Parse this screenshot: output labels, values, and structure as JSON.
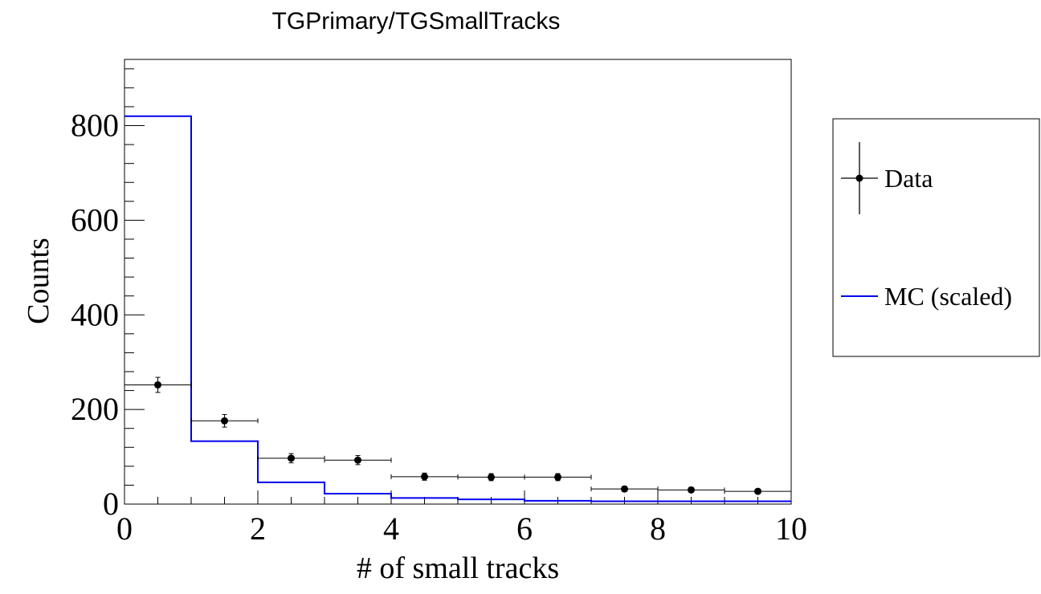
{
  "chart_data": {
    "type": "histogram",
    "title": "TGPrimary/TGSmallTracks",
    "xlabel": "# of small tracks",
    "ylabel": "Counts",
    "xlim": [
      0,
      10
    ],
    "ylim": [
      0,
      940
    ],
    "x_ticks": [
      0,
      2,
      4,
      6,
      8,
      10
    ],
    "y_ticks": [
      0,
      200,
      400,
      600,
      800
    ],
    "x_tick_labels": [
      "0",
      "2",
      "4",
      "6",
      "8",
      "10"
    ],
    "y_tick_labels": [
      "0",
      "200",
      "400",
      "600",
      "800"
    ],
    "bin_edges": [
      0,
      1,
      2,
      3,
      4,
      5,
      6,
      7,
      8,
      9,
      10
    ],
    "series": [
      {
        "name": "Data",
        "style": "points-with-errors",
        "color": "#000000",
        "x": [
          0.5,
          1.5,
          2.5,
          3.5,
          4.5,
          5.5,
          6.5,
          7.5,
          8.5,
          9.5
        ],
        "values": [
          252,
          176,
          97,
          93,
          58,
          57,
          57,
          32,
          30,
          27
        ],
        "errors": [
          15.9,
          13.3,
          9.8,
          9.6,
          7.6,
          7.5,
          7.5,
          5.7,
          5.5,
          5.2
        ]
      },
      {
        "name": "MC (scaled)",
        "style": "step",
        "color": "#0000ee",
        "values": [
          820,
          133,
          46,
          22,
          13,
          10,
          7,
          6,
          6,
          6
        ]
      }
    ],
    "legend": {
      "position": "right",
      "entries": [
        "Data",
        "MC (scaled)"
      ]
    }
  }
}
